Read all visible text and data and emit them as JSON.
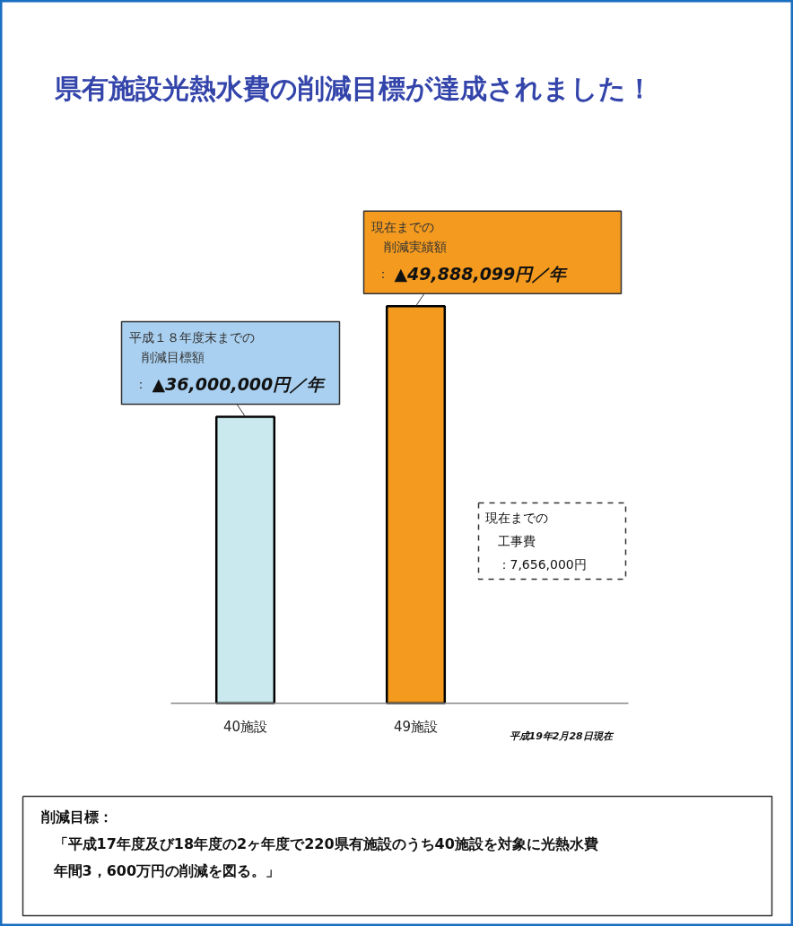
{
  "chart_data": {
    "type": "bar",
    "title": "県有施設光熱水費の削減目標が達成されました！",
    "categories": [
      "40施設",
      "49施設"
    ],
    "values": [
      36000000,
      49888099
    ],
    "colors": [
      "#c9e9ef",
      "#f39a1f"
    ],
    "value_labels": [
      "▲36,000,000円／年",
      "▲49,888,099円／年"
    ],
    "annotations": [
      "平成１８年度末までの",
      "削減目標額",
      "：",
      "現在までの",
      "削減実績額",
      "：",
      "現在までの",
      "工事費",
      "：7,656,000円",
      "平成19年2月28日現在",
      "削減目標：",
      "「平成17年度及び18年度の2ヶ年度で220県有施設のうち40施設を対象に光熱水費",
      "年間3，600万円の削減を図る。」"
    ],
    "grid": false
  }
}
